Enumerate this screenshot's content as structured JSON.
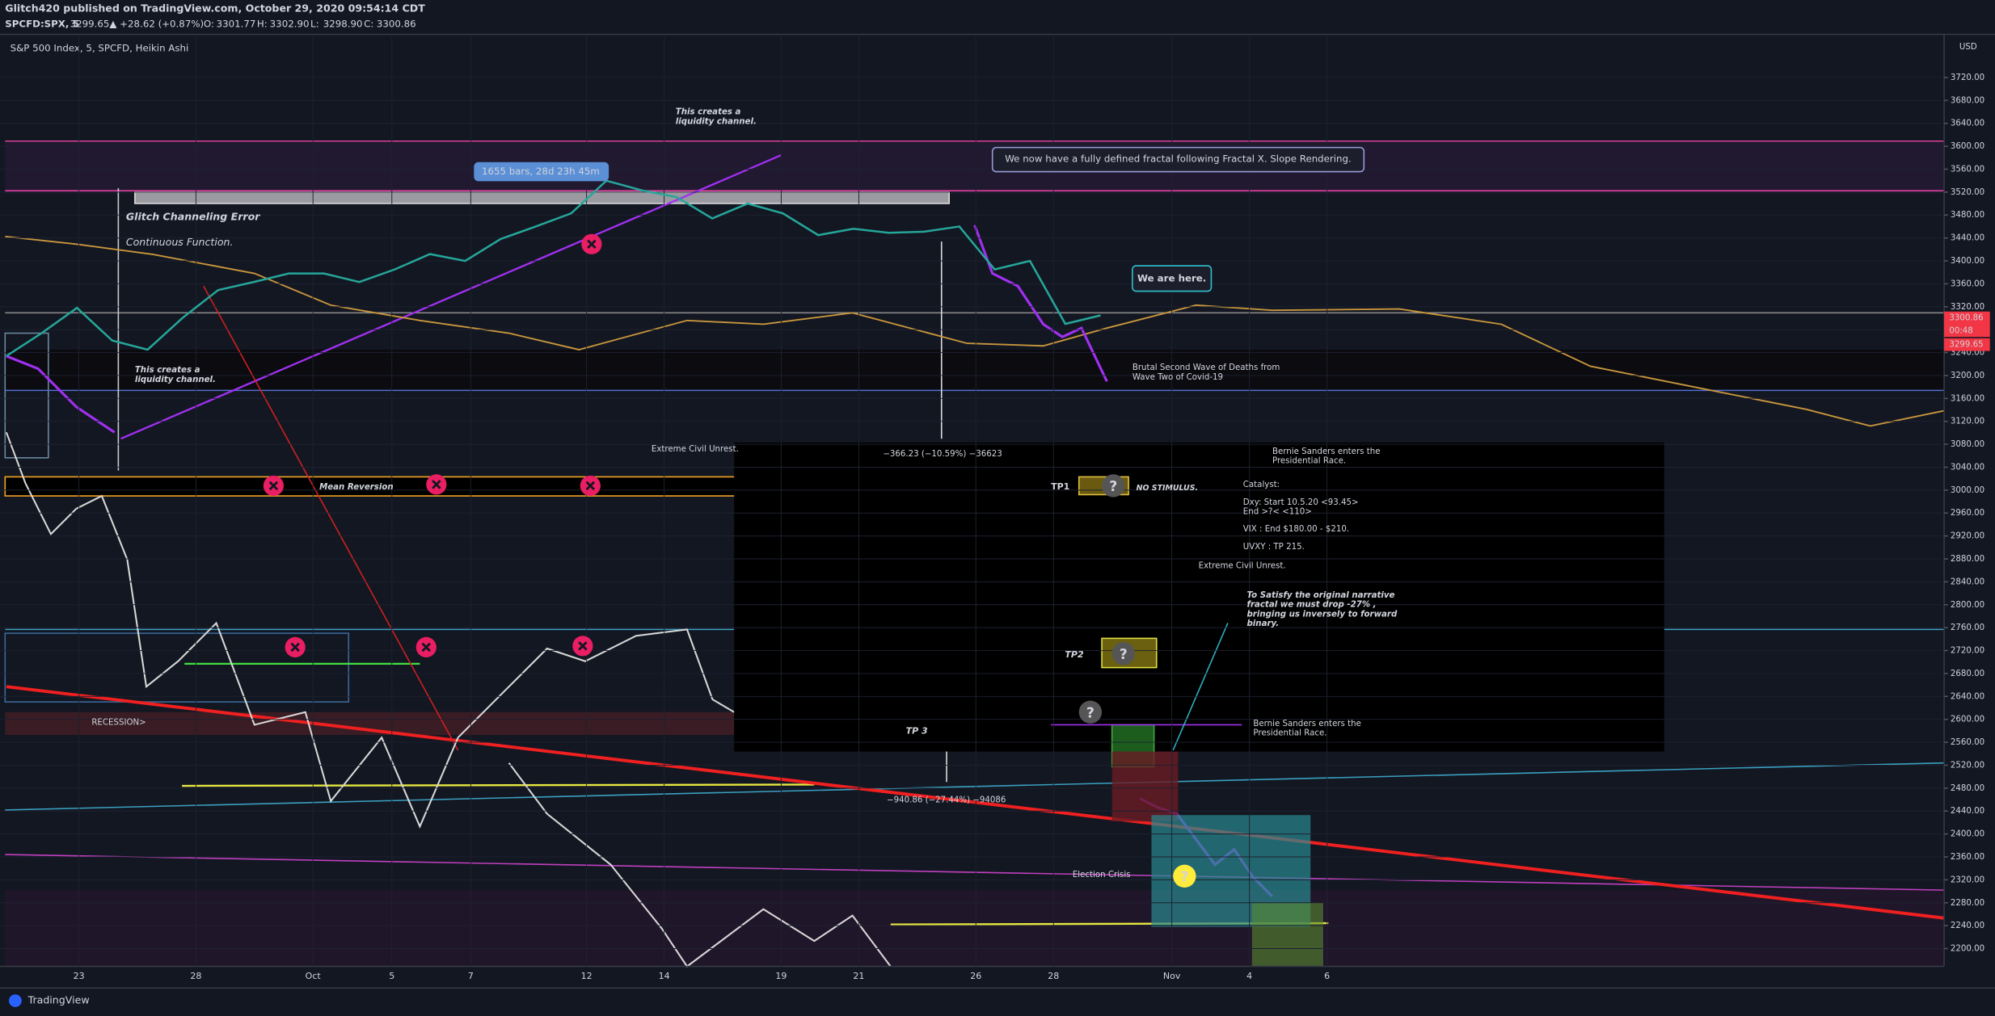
{
  "header": {
    "publisher": "Glitch420 published on TradingView.com, October 29, 2020 09:54:14 CDT",
    "symbol": "SPCFD:SPX, 5",
    "last": "3299.65",
    "change": "▲ +28.62 (+0.87%)",
    "ohlc": [
      {
        "key": "O:",
        "value": "3301.77"
      },
      {
        "key": "H:",
        "value": "3302.90"
      },
      {
        "key": "L:",
        "value": "3298.90"
      },
      {
        "key": "C:",
        "value": "3300.86"
      }
    ]
  },
  "legend": "S&P 500 Index, 5, SPCFD, Heikin Ashi",
  "currency": "USD",
  "countdown": "00:48",
  "footer": "TradingView",
  "chart_data": {
    "type": "line",
    "series": [
      {
        "name": "S&P 500 Index",
        "color": "#26a69a",
        "values": [
          3234,
          3274,
          3318,
          3261,
          3245,
          3301,
          3349,
          3363,
          3378,
          3378,
          3363,
          3385,
          3412,
          3400,
          3438,
          3460,
          3483,
          3540,
          3523,
          3511,
          3474,
          3500,
          3483,
          3445,
          3456,
          3449,
          3451,
          3460,
          3385,
          3400,
          3290,
          3305
        ]
      }
    ],
    "x_tick_labels": [
      "23",
      "28",
      "Oct",
      "5",
      "7",
      "12",
      "14",
      "19",
      "21",
      "26",
      "28",
      "Nov",
      "4",
      "6"
    ],
    "ylim": [
      2170,
      3790
    ],
    "yticks": [
      {
        "value": 3720,
        "label": "3720.00"
      },
      {
        "value": 3680,
        "label": "3680.00"
      },
      {
        "value": 3640,
        "label": "3640.00"
      },
      {
        "value": 3600,
        "label": "3600.00"
      },
      {
        "value": 3560,
        "label": "3560.00"
      },
      {
        "value": 3520,
        "label": "3520.00"
      },
      {
        "value": 3480,
        "label": "3480.00"
      },
      {
        "value": 3440,
        "label": "3440.00"
      },
      {
        "value": 3400,
        "label": "3400.00"
      },
      {
        "value": 3360,
        "label": "3360.00"
      },
      {
        "value": 3320,
        "label": "3320.00"
      },
      {
        "value": 3280,
        "label": "3280.00"
      },
      {
        "value": 3240,
        "label": "3240.00"
      },
      {
        "value": 3200,
        "label": "3200.00"
      },
      {
        "value": 3160,
        "label": "3160.00"
      },
      {
        "value": 3120,
        "label": "3120.00"
      },
      {
        "value": 3080,
        "label": "3080.00"
      },
      {
        "value": 3040,
        "label": "3040.00"
      },
      {
        "value": 3000,
        "label": "3000.00"
      },
      {
        "value": 2960,
        "label": "2960.00"
      },
      {
        "value": 2920,
        "label": "2920.00"
      },
      {
        "value": 2880,
        "label": "2880.00"
      },
      {
        "value": 2840,
        "label": "2840.00"
      },
      {
        "value": 2800,
        "label": "2800.00"
      },
      {
        "value": 2760,
        "label": "2760.00"
      },
      {
        "value": 2720,
        "label": "2720.00"
      },
      {
        "value": 2680,
        "label": "2680.00"
      },
      {
        "value": 2640,
        "label": "2640.00"
      },
      {
        "value": 2600,
        "label": "2600.00"
      },
      {
        "value": 2560,
        "label": "2560.00"
      },
      {
        "value": 2520,
        "label": "2520.00"
      },
      {
        "value": 2480,
        "label": "2480.00"
      },
      {
        "value": 2440,
        "label": "2440.00"
      },
      {
        "value": 2400,
        "label": "2400.00"
      },
      {
        "value": 2360,
        "label": "2360.00"
      },
      {
        "value": 2320,
        "label": "2320.00"
      },
      {
        "value": 2280,
        "label": "2280.00"
      },
      {
        "value": 2240,
        "label": "2240.00"
      },
      {
        "value": 2200,
        "label": "2200.00"
      }
    ],
    "grid": true
  },
  "annotations": [
    {
      "lines": [
        "This creates a",
        "liquidity channel."
      ]
    },
    {
      "lines": [
        "This creates a",
        "liquidity channel."
      ]
    },
    {
      "lines": [
        "1655 bars, 28d 23h 45m"
      ]
    },
    {
      "lines": [
        "We now have a fully defined fractal following Fractal X. Slope Rendering."
      ]
    },
    {
      "lines": [
        "We are here."
      ]
    },
    {
      "lines": [
        "Glitch Channeling Error"
      ]
    },
    {
      "lines": [
        "Continuous Function."
      ]
    },
    {
      "lines": [
        "Brutal Second Wave of Deaths from",
        "Wave Two of Covid-19"
      ]
    },
    {
      "lines": [
        "Extreme Civil Unrest."
      ]
    },
    {
      "lines": [
        "Mean Reversion"
      ]
    },
    {
      "lines": [
        "RECESSION>"
      ]
    },
    {
      "lines": [
        "−366.23 (−10.59%) −36623"
      ]
    },
    {
      "lines": [
        "TP1"
      ]
    },
    {
      "lines": [
        "NO STIMULUS."
      ]
    },
    {
      "lines": [
        "Bernie Sanders enters the",
        "Presidential Race."
      ]
    },
    {
      "lines": [
        "Catalyst:"
      ]
    },
    {
      "lines": [
        "Dxy: Start 10.5.20 <93.45>",
        "End >?< <110>"
      ]
    },
    {
      "lines": [
        "VIX : End $180.00 - $210."
      ]
    },
    {
      "lines": [
        "UVXY : TP 215."
      ]
    },
    {
      "lines": [
        "Extreme Civil Unrest."
      ]
    },
    {
      "lines": [
        "To Satisfy the original narrative",
        "fractal we must drop -27% ,",
        "bringing us inversely to forward",
        "binary."
      ]
    },
    {
      "lines": [
        "TP2"
      ]
    },
    {
      "lines": [
        "TP 3"
      ]
    },
    {
      "lines": [
        "Bernie Sanders enters the",
        "Presidential Race."
      ]
    },
    {
      "lines": [
        "−940.86 (−27.44%) −94086"
      ]
    },
    {
      "lines": [
        "Election Crisis"
      ]
    }
  ],
  "question_marks": [
    "?",
    "?",
    "?",
    "?"
  ]
}
